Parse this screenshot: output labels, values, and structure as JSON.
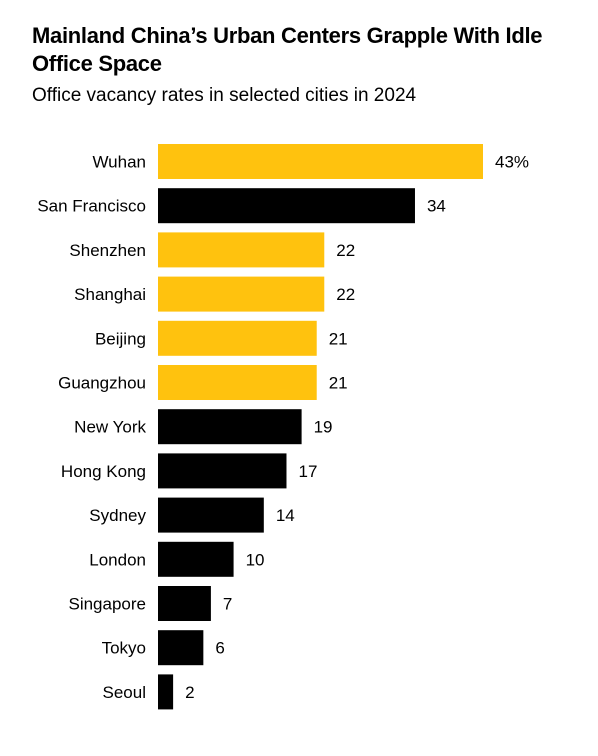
{
  "title": "Mainland China’s Urban Centers Grapple With Idle Office Space",
  "subtitle": "Office vacancy rates in selected cities in 2024",
  "colors": {
    "highlight": "#FFC20E",
    "default": "#000000"
  },
  "chart_data": {
    "type": "bar",
    "orientation": "horizontal",
    "categories": [
      "Wuhan",
      "San Francisco",
      "Shenzhen",
      "Shanghai",
      "Beijing",
      "Guangzhou",
      "New York",
      "Hong Kong",
      "Sydney",
      "London",
      "Singapore",
      "Tokyo",
      "Seoul"
    ],
    "values": [
      43,
      34,
      22,
      22,
      21,
      21,
      19,
      17,
      14,
      10,
      7,
      6,
      2
    ],
    "value_labels": [
      "43%",
      "34",
      "22",
      "22",
      "21",
      "21",
      "19",
      "17",
      "14",
      "10",
      "7",
      "6",
      "2"
    ],
    "highlighted": [
      "Wuhan",
      "Shenzhen",
      "Shanghai",
      "Beijing",
      "Guangzhou"
    ],
    "unit": "%",
    "xlim": [
      0,
      43
    ],
    "grid": false,
    "legend": "none"
  }
}
